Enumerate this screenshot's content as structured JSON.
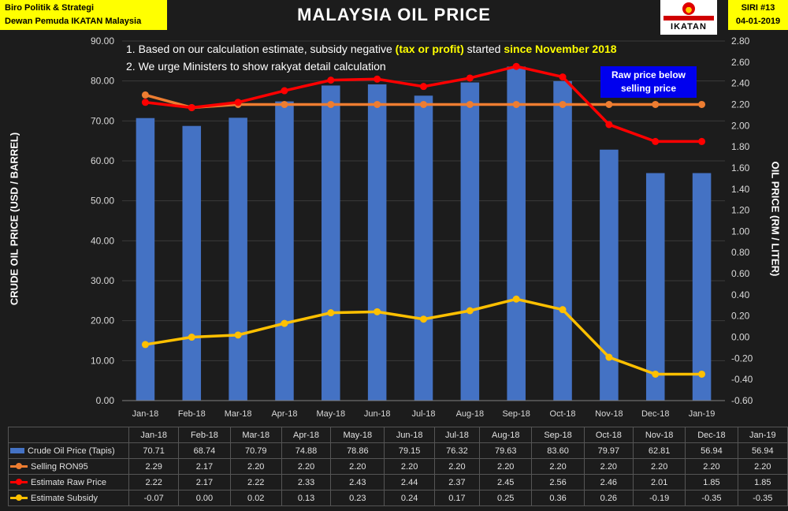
{
  "header": {
    "left_line1": "Biro Politik & Strategi",
    "left_line2": "Dewan Pemuda IKATAN Malaysia",
    "logo_text": "IKATAN",
    "right_line1": "SIRI #13",
    "right_line2": "04-01-2019"
  },
  "notes": {
    "n1_a": "1. Based on our calculation estimate, subsidy negative ",
    "n1_b": "(tax or profit)",
    "n1_c": " started ",
    "n1_d": "since November 2018",
    "n2": "2. We urge Ministers to show rakyat detail calculation"
  },
  "callout": {
    "line1": "Raw price below",
    "line2": "selling price"
  },
  "colors": {
    "bar": "#4472c4",
    "selling": "#ed7d31",
    "raw": "#ff0000",
    "subsidy": "#ffc000",
    "hatch": "#ff33cc"
  },
  "chart_data": {
    "type": "bar",
    "title": "MALAYSIA OIL PRICE",
    "ylabel_left": "CRUDE OIL PRICE (USD / BARREL)",
    "ylabel_right": "OIL PRICE (RM / LITER)",
    "categories": [
      "Jan-18",
      "Feb-18",
      "Mar-18",
      "Apr-18",
      "May-18",
      "Jun-18",
      "Jul-18",
      "Aug-18",
      "Sep-18",
      "Oct-18",
      "Nov-18",
      "Dec-18",
      "Jan-19"
    ],
    "ylim_left": [
      0,
      90
    ],
    "yticks_left": [
      "0.00",
      "10.00",
      "20.00",
      "30.00",
      "40.00",
      "50.00",
      "60.00",
      "70.00",
      "80.00",
      "90.00"
    ],
    "ylim_right": [
      -0.6,
      2.8
    ],
    "yticks_right": [
      "-0.60",
      "-0.40",
      "-0.20",
      "0.00",
      "0.20",
      "0.40",
      "0.60",
      "0.80",
      "1.00",
      "1.20",
      "1.40",
      "1.60",
      "1.80",
      "2.00",
      "2.20",
      "2.40",
      "2.60",
      "2.80"
    ],
    "series": [
      {
        "name": "Crude Oil Price (Tapis)",
        "axis": "left",
        "kind": "bar",
        "values": [
          70.71,
          68.74,
          70.79,
          74.88,
          78.86,
          79.15,
          76.32,
          79.63,
          83.6,
          79.97,
          62.81,
          56.94,
          56.94
        ],
        "labels": [
          "70.71",
          "68.74",
          "70.79",
          "74.88",
          "78.86",
          "79.15",
          "76.32",
          "79.63",
          "83.60",
          "79.97",
          "62.81",
          "56.94",
          "56.94"
        ]
      },
      {
        "name": "Selling RON95",
        "axis": "right",
        "kind": "line",
        "values": [
          2.29,
          2.17,
          2.2,
          2.2,
          2.2,
          2.2,
          2.2,
          2.2,
          2.2,
          2.2,
          2.2,
          2.2,
          2.2
        ],
        "labels": [
          "2.29",
          "2.17",
          "2.20",
          "2.20",
          "2.20",
          "2.20",
          "2.20",
          "2.20",
          "2.20",
          "2.20",
          "2.20",
          "2.20",
          "2.20"
        ]
      },
      {
        "name": "Estimate Raw Price",
        "axis": "right",
        "kind": "line",
        "values": [
          2.22,
          2.17,
          2.22,
          2.33,
          2.43,
          2.44,
          2.37,
          2.45,
          2.56,
          2.46,
          2.01,
          1.85,
          1.85
        ],
        "labels": [
          "2.22",
          "2.17",
          "2.22",
          "2.33",
          "2.43",
          "2.44",
          "2.37",
          "2.45",
          "2.56",
          "2.46",
          "2.01",
          "1.85",
          "1.85"
        ]
      },
      {
        "name": "Estimate Subsidy",
        "axis": "right",
        "kind": "line",
        "values": [
          -0.07,
          0.0,
          0.02,
          0.13,
          0.23,
          0.24,
          0.17,
          0.25,
          0.36,
          0.26,
          -0.19,
          -0.35,
          -0.35
        ],
        "labels": [
          "-0.07",
          "0.00",
          "0.02",
          "0.13",
          "0.23",
          "0.24",
          "0.17",
          "0.25",
          "0.36",
          "0.26",
          "-0.19",
          "-0.35",
          "-0.35"
        ]
      }
    ]
  }
}
